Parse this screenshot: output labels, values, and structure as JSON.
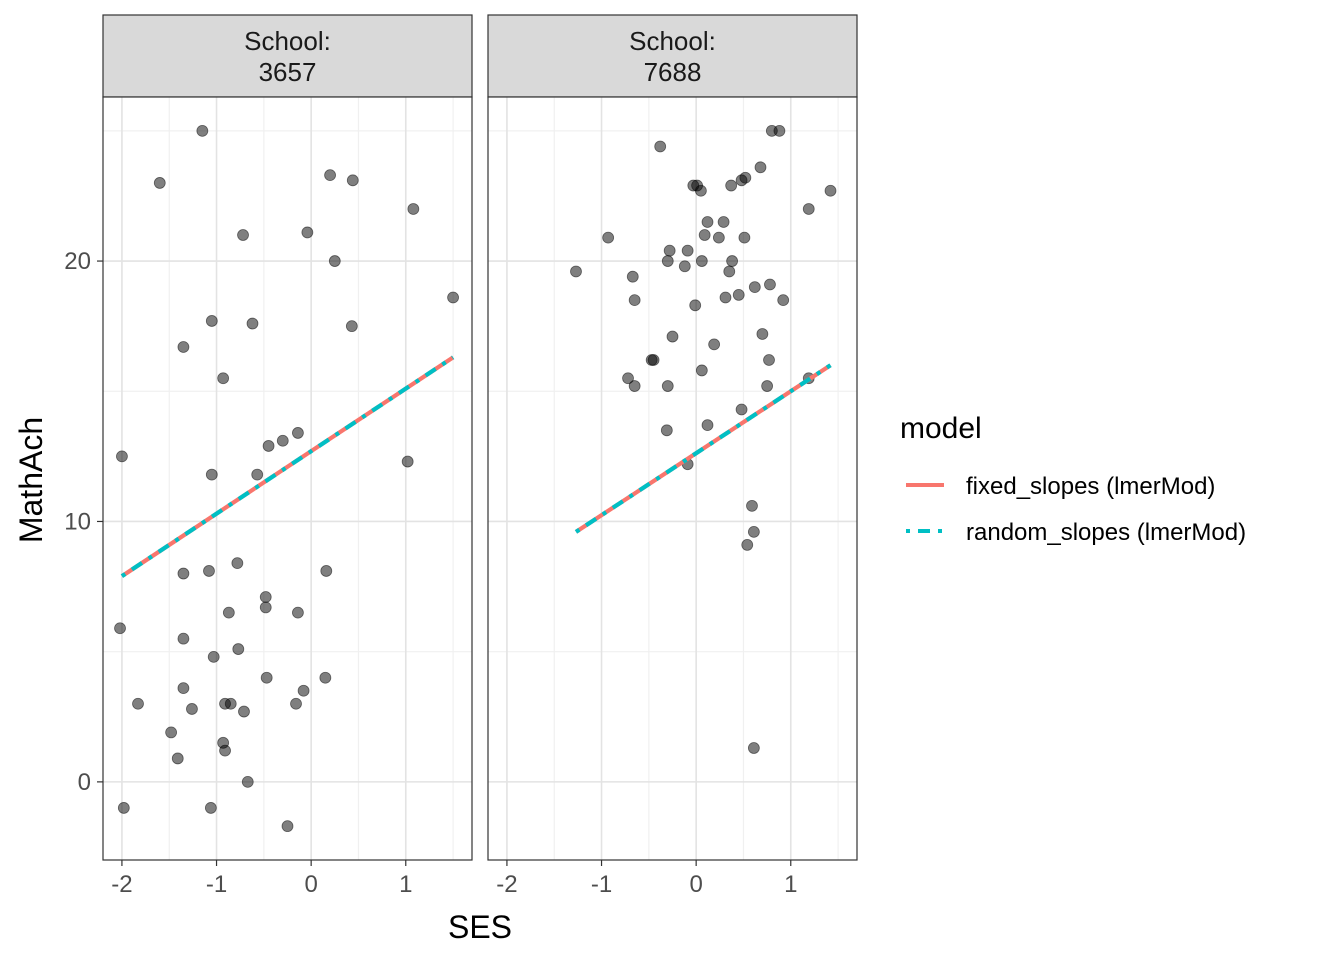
{
  "chart_data": {
    "type": "scatter",
    "xlabel": "SES",
    "ylabel": "MathAch",
    "xlim": [
      -2.2,
      1.7
    ],
    "ylim": [
      -3.0,
      26.3
    ],
    "x_ticks": [
      -2,
      -1,
      0,
      1
    ],
    "x_tick_labels": [
      "-2",
      "-1",
      "0",
      "1"
    ],
    "y_ticks": [
      0,
      10,
      20
    ],
    "y_tick_labels": [
      "0",
      "10",
      "20"
    ],
    "grid": true,
    "facets": [
      {
        "strip_lines": [
          "School:",
          "3657"
        ],
        "points": [
          [
            -1.15,
            25.0
          ],
          [
            -1.6,
            23.0
          ],
          [
            0.2,
            23.3
          ],
          [
            0.44,
            23.1
          ],
          [
            1.08,
            22.0
          ],
          [
            -0.04,
            21.1
          ],
          [
            -0.72,
            21.0
          ],
          [
            0.25,
            20.0
          ],
          [
            1.5,
            18.6
          ],
          [
            -1.05,
            17.7
          ],
          [
            -0.62,
            17.6
          ],
          [
            0.43,
            17.5
          ],
          [
            -1.35,
            16.7
          ],
          [
            -0.93,
            15.5
          ],
          [
            -2.0,
            12.5
          ],
          [
            1.02,
            12.3
          ],
          [
            -1.05,
            11.8
          ],
          [
            -0.57,
            11.8
          ],
          [
            -0.45,
            12.9
          ],
          [
            -0.3,
            13.1
          ],
          [
            -0.14,
            13.4
          ],
          [
            -1.35,
            8.0
          ],
          [
            -1.08,
            8.1
          ],
          [
            -0.78,
            8.4
          ],
          [
            0.16,
            8.1
          ],
          [
            -2.02,
            5.9
          ],
          [
            -1.35,
            5.5
          ],
          [
            -0.87,
            6.5
          ],
          [
            -0.48,
            6.7
          ],
          [
            -0.48,
            7.1
          ],
          [
            -0.14,
            6.5
          ],
          [
            -1.03,
            4.8
          ],
          [
            -0.77,
            5.1
          ],
          [
            -1.35,
            3.6
          ],
          [
            -0.47,
            4.0
          ],
          [
            0.15,
            4.0
          ],
          [
            -1.83,
            3.0
          ],
          [
            -1.26,
            2.8
          ],
          [
            -0.91,
            3.0
          ],
          [
            -0.85,
            3.0
          ],
          [
            -0.71,
            2.7
          ],
          [
            -0.08,
            3.5
          ],
          [
            -0.16,
            3.0
          ],
          [
            -1.48,
            1.9
          ],
          [
            -0.93,
            1.5
          ],
          [
            -0.91,
            1.2
          ],
          [
            -1.41,
            0.9
          ],
          [
            -0.67,
            0.0
          ],
          [
            -1.98,
            -1.0
          ],
          [
            -1.06,
            -1.0
          ],
          [
            -0.25,
            -1.7
          ]
        ],
        "lines": {
          "fixed_slopes": [
            [
              -2.0,
              7.9
            ],
            [
              1.5,
              16.3
            ]
          ],
          "random_slopes": [
            [
              -2.0,
              7.9
            ],
            [
              1.5,
              16.3
            ]
          ]
        }
      },
      {
        "strip_lines": [
          "School:",
          "7688"
        ],
        "points": [
          [
            0.8,
            25.0
          ],
          [
            0.88,
            25.0
          ],
          [
            -0.38,
            24.4
          ],
          [
            0.68,
            23.6
          ],
          [
            0.52,
            23.2
          ],
          [
            0.48,
            23.1
          ],
          [
            0.37,
            22.9
          ],
          [
            -0.03,
            22.9
          ],
          [
            0.01,
            22.9
          ],
          [
            0.05,
            22.7
          ],
          [
            1.42,
            22.7
          ],
          [
            1.19,
            22.0
          ],
          [
            0.12,
            21.5
          ],
          [
            0.29,
            21.5
          ],
          [
            0.09,
            21.0
          ],
          [
            0.24,
            20.9
          ],
          [
            -0.93,
            20.9
          ],
          [
            0.51,
            20.9
          ],
          [
            -0.28,
            20.4
          ],
          [
            -0.09,
            20.4
          ],
          [
            -0.3,
            20.0
          ],
          [
            -0.12,
            19.8
          ],
          [
            0.06,
            20.0
          ],
          [
            0.38,
            20.0
          ],
          [
            -1.27,
            19.6
          ],
          [
            -0.67,
            19.4
          ],
          [
            0.35,
            19.6
          ],
          [
            0.62,
            19.0
          ],
          [
            0.78,
            19.1
          ],
          [
            0.45,
            18.7
          ],
          [
            0.31,
            18.6
          ],
          [
            0.92,
            18.5
          ],
          [
            -0.65,
            18.5
          ],
          [
            -0.01,
            18.3
          ],
          [
            0.7,
            17.2
          ],
          [
            -0.25,
            17.1
          ],
          [
            0.19,
            16.8
          ],
          [
            -0.45,
            16.2
          ],
          [
            -0.47,
            16.2
          ],
          [
            0.77,
            16.2
          ],
          [
            -0.72,
            15.5
          ],
          [
            -0.65,
            15.2
          ],
          [
            -0.3,
            15.2
          ],
          [
            0.06,
            15.8
          ],
          [
            0.75,
            15.2
          ],
          [
            1.19,
            15.5
          ],
          [
            0.48,
            14.3
          ],
          [
            0.12,
            13.7
          ],
          [
            -0.31,
            13.5
          ],
          [
            -0.09,
            12.2
          ],
          [
            0.59,
            10.6
          ],
          [
            0.61,
            9.6
          ],
          [
            0.54,
            9.1
          ],
          [
            0.61,
            1.3
          ]
        ],
        "lines": {
          "fixed_slopes": [
            [
              -1.27,
              9.6
            ],
            [
              1.42,
              16.0
            ]
          ],
          "random_slopes": [
            [
              -1.27,
              9.6
            ],
            [
              1.42,
              16.0
            ]
          ]
        }
      }
    ],
    "legend": {
      "title": "model",
      "position": "right",
      "entries": [
        {
          "key": "fixed_slopes",
          "label": "fixed_slopes (lmerMod)",
          "color": "#F8766D",
          "style": "solid"
        },
        {
          "key": "random_slopes",
          "label": "random_slopes (lmerMod)",
          "color": "#00BFC4",
          "style": "dashed"
        }
      ]
    },
    "point_color": "#000000",
    "point_alpha": 0.5,
    "strip_fill": "#d9d9d9"
  }
}
